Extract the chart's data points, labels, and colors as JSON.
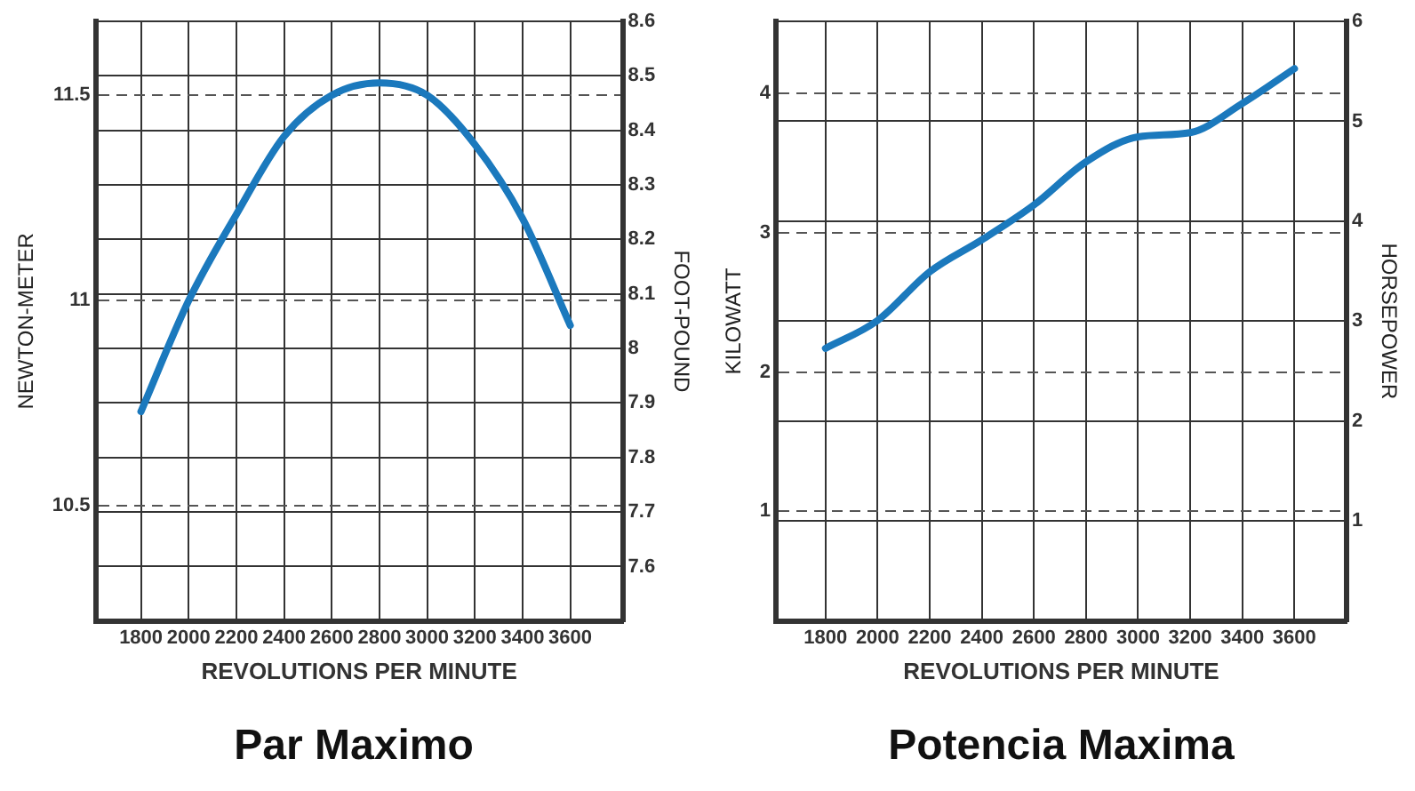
{
  "chart_data": [
    {
      "type": "line",
      "title": "Par Maximo",
      "xlabel": "REVOLUTIONS PER MINUTE",
      "ylabel": "NEWTON-METER",
      "y2label": "FOOT-POUND",
      "x": [
        1800,
        2000,
        2200,
        2400,
        2600,
        2800,
        3000,
        3200,
        3400,
        3600
      ],
      "series": [
        {
          "color": "#1b79bd",
          "values": [
            10.73,
            11.0,
            11.21,
            11.4,
            11.5,
            11.53,
            11.5,
            11.38,
            11.2,
            10.94
          ]
        }
      ],
      "xlim": [
        1610,
        3820
      ],
      "xticks": [
        1800,
        2000,
        2200,
        2400,
        2600,
        2800,
        3000,
        3200,
        3400,
        3600
      ],
      "ylim": [
        10.22,
        11.68
      ],
      "yticks": [
        10.5,
        11,
        11.5
      ],
      "y2lim": [
        7.5,
        8.6
      ],
      "y2ticks": [
        7.6,
        7.7,
        7.8,
        7.9,
        8,
        8.1,
        8.2,
        8.3,
        8.4,
        8.5,
        8.6
      ],
      "grid": true,
      "marker": "none",
      "line_style": "solid"
    },
    {
      "type": "line",
      "title": "Potencia Maxima",
      "xlabel": "REVOLUTIONS PER MINUTE",
      "ylabel": "KILOWATT",
      "y2label": "HORSEPOWER",
      "x": [
        1800,
        2000,
        2200,
        2400,
        2600,
        2800,
        3000,
        3200,
        3400,
        3600
      ],
      "series": [
        {
          "color": "#1b79bd",
          "values": [
            2.17,
            2.37,
            2.72,
            2.95,
            3.2,
            3.51,
            3.69,
            3.72,
            3.93,
            4.18
          ]
        }
      ],
      "xlim": [
        1610,
        3800
      ],
      "xticks": [
        1800,
        2000,
        2200,
        2400,
        2600,
        2800,
        3000,
        3200,
        3400,
        3600
      ],
      "ylim": [
        0.21,
        4.52
      ],
      "yticks": [
        1,
        2,
        3,
        4
      ],
      "y2lim": [
        0,
        6
      ],
      "y2ticks": [
        1,
        2,
        3,
        4,
        5,
        6
      ],
      "grid": true,
      "marker": "none",
      "line_style": "solid"
    }
  ]
}
